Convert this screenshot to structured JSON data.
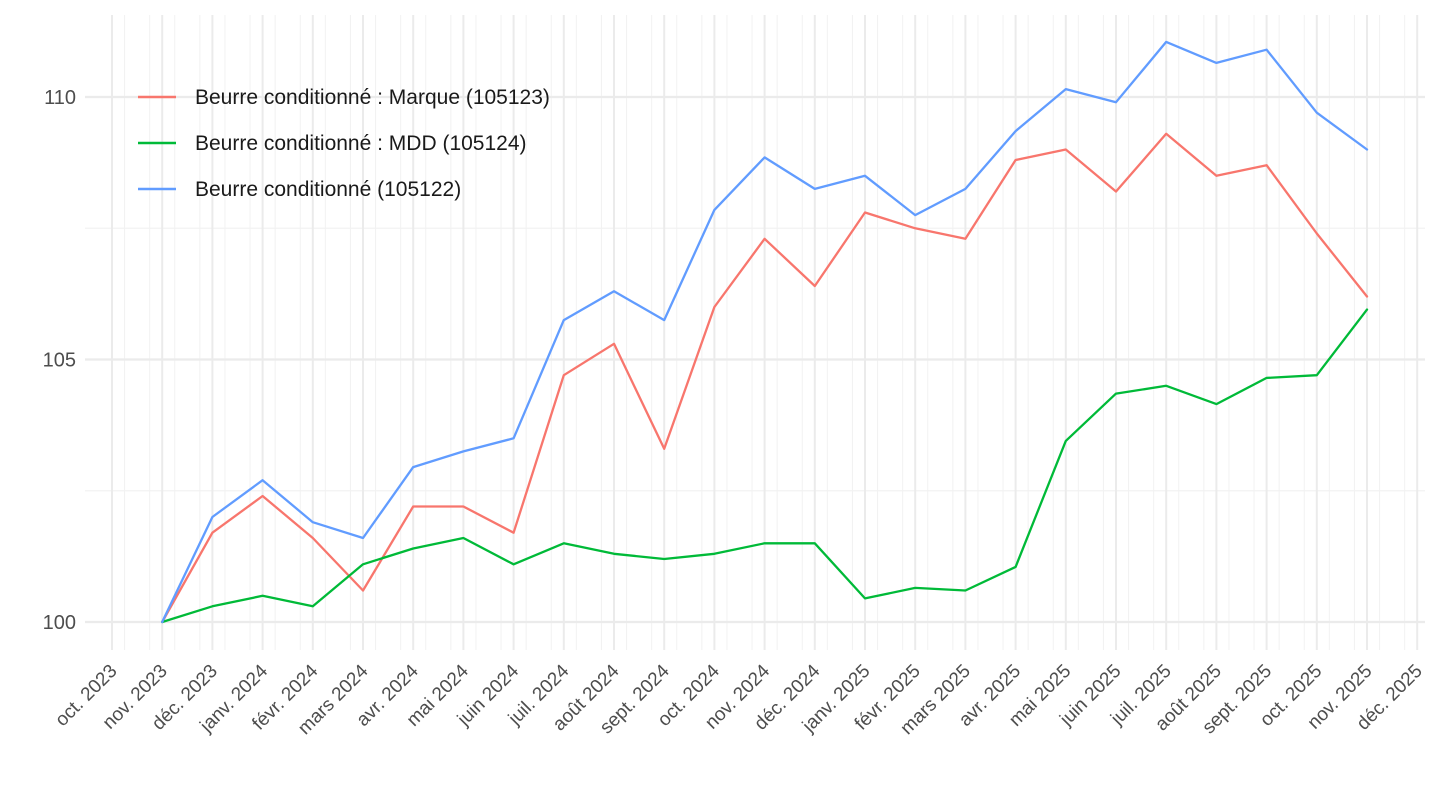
{
  "chart_data": {
    "type": "line",
    "title": "",
    "xlabel": "",
    "ylabel": "",
    "x": [
      "nov. 2023",
      "déc. 2023",
      "janv. 2024",
      "févr. 2024",
      "mars 2024",
      "avr. 2024",
      "mai 2024",
      "juin 2024",
      "juil. 2024",
      "août 2024",
      "sept. 2024",
      "oct. 2024",
      "nov. 2024",
      "déc. 2024",
      "janv. 2025",
      "févr. 2025",
      "mars 2025",
      "avr. 2025",
      "mai 2025",
      "juin 2025",
      "juil. 2025",
      "août 2025",
      "sept. 2025",
      "oct. 2025",
      "nov. 2025"
    ],
    "x_tick_labels": [
      "oct. 2023",
      "nov. 2023",
      "déc. 2023",
      "janv. 2024",
      "févr. 2024",
      "mars 2024",
      "avr. 2024",
      "mai 2024",
      "juin 2024",
      "juil. 2024",
      "août 2024",
      "sept. 2024",
      "oct. 2024",
      "nov. 2024",
      "déc. 2024",
      "janv. 2025",
      "févr. 2025",
      "mars 2025",
      "avr. 2025",
      "mai 2025",
      "juin 2025",
      "juil. 2025",
      "août 2025",
      "sept. 2025",
      "oct. 2025",
      "nov. 2025",
      "déc. 2025"
    ],
    "y_ticks": [
      100,
      105,
      110
    ],
    "ylim": [
      99.5,
      111.5
    ],
    "grid": true,
    "legend_position": "top-left",
    "series": [
      {
        "name": "Beurre conditionné : Marque (105123)",
        "color": "#F8766D",
        "values": [
          100.0,
          101.7,
          102.4,
          101.6,
          100.6,
          102.2,
          102.2,
          101.7,
          104.7,
          105.3,
          103.3,
          106.0,
          107.3,
          106.4,
          107.8,
          107.5,
          107.3,
          108.8,
          109.0,
          108.2,
          109.3,
          108.5,
          108.7,
          107.4,
          106.2
        ]
      },
      {
        "name": "Beurre conditionné : MDD (105124)",
        "color": "#00BA38",
        "values": [
          100.0,
          100.3,
          100.5,
          100.3,
          101.1,
          101.4,
          101.6,
          101.1,
          101.5,
          101.3,
          101.2,
          101.3,
          101.5,
          101.5,
          100.45,
          100.65,
          100.6,
          101.05,
          103.45,
          104.35,
          104.5,
          104.15,
          104.65,
          104.7,
          105.95
        ]
      },
      {
        "name": "Beurre conditionné (105122)",
        "color": "#619CFF",
        "values": [
          100.0,
          102.0,
          102.7,
          101.9,
          101.6,
          102.95,
          103.25,
          103.5,
          105.75,
          106.3,
          105.75,
          107.85,
          108.85,
          108.25,
          108.5,
          107.75,
          108.25,
          109.35,
          110.15,
          109.9,
          111.05,
          110.65,
          110.9,
          109.7,
          109.0
        ]
      }
    ]
  }
}
